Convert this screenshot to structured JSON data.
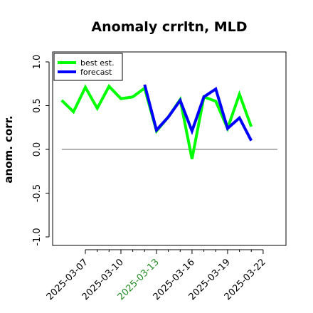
{
  "chart_data": {
    "type": "line",
    "title": "Anomaly crrltn, MLD",
    "ylabel": "anom. corr.",
    "xlabel": "",
    "ylim": [
      -1.0,
      1.0
    ],
    "yticks": [
      "-1.0",
      "-0.5",
      "0.0",
      "0.5",
      "1.0"
    ],
    "ytick_values": [
      -1.0,
      -0.5,
      0.0,
      0.5,
      1.0
    ],
    "reference_line": 0.0,
    "x": [
      "2025-03-06",
      "2025-03-06 12h",
      "2025-03-07",
      "2025-03-07 12h",
      "2025-03-08",
      "2025-03-08 12h",
      "2025-03-09",
      "2025-03-09 12h",
      "2025-03-10",
      "2025-03-10 12h",
      "2025-03-11",
      "2025-03-11 12h",
      "2025-03-12",
      "2025-03-12 12h",
      "2025-03-13",
      "2025-03-13 12h",
      "2025-03-14",
      "2025-03-14 12h",
      "2025-03-15",
      "2025-03-15 12h",
      "2025-03-16",
      "2025-03-16 12h",
      "2025-03-17",
      "2025-03-17 12h",
      "2025-03-18",
      "2025-03-18 12h",
      "2025-03-19",
      "2025-03-19 12h",
      "2025-03-20",
      "2025-03-20 12h",
      "2025-03-21",
      "2025-03-21 12h",
      "2025-03-22"
    ],
    "xticks": [
      "2025-03-07",
      "2025-03-10",
      "2025-03-13",
      "2025-03-16",
      "2025-03-19",
      "2025-03-22"
    ],
    "xtick_positions": [
      2,
      8,
      14,
      20,
      26,
      32
    ],
    "highlight_tick": "2025-03-13",
    "series": [
      {
        "name": "best est.",
        "color": "#00ff00",
        "points": [
          [
            -2,
            0.56
          ],
          [
            0,
            0.43
          ],
          [
            2,
            0.71
          ],
          [
            4,
            0.47
          ],
          [
            6,
            0.72
          ],
          [
            8,
            0.58
          ],
          [
            10,
            0.6
          ],
          [
            12,
            0.7
          ],
          [
            14,
            0.21
          ],
          [
            16,
            0.37
          ],
          [
            18,
            0.57
          ],
          [
            20,
            -0.11
          ],
          [
            22,
            0.6
          ],
          [
            24,
            0.55
          ],
          [
            26,
            0.24
          ],
          [
            28,
            0.63
          ],
          [
            30,
            0.26
          ]
        ]
      },
      {
        "name": "forecast",
        "color": "#0000ff",
        "points": [
          [
            12,
            0.74
          ],
          [
            14,
            0.22
          ],
          [
            16,
            0.37
          ],
          [
            18,
            0.56
          ],
          [
            20,
            0.21
          ],
          [
            22,
            0.6
          ],
          [
            24,
            0.69
          ],
          [
            26,
            0.24
          ],
          [
            28,
            0.36
          ],
          [
            30,
            0.1
          ]
        ]
      }
    ],
    "legend": "top-left",
    "grid": false
  }
}
